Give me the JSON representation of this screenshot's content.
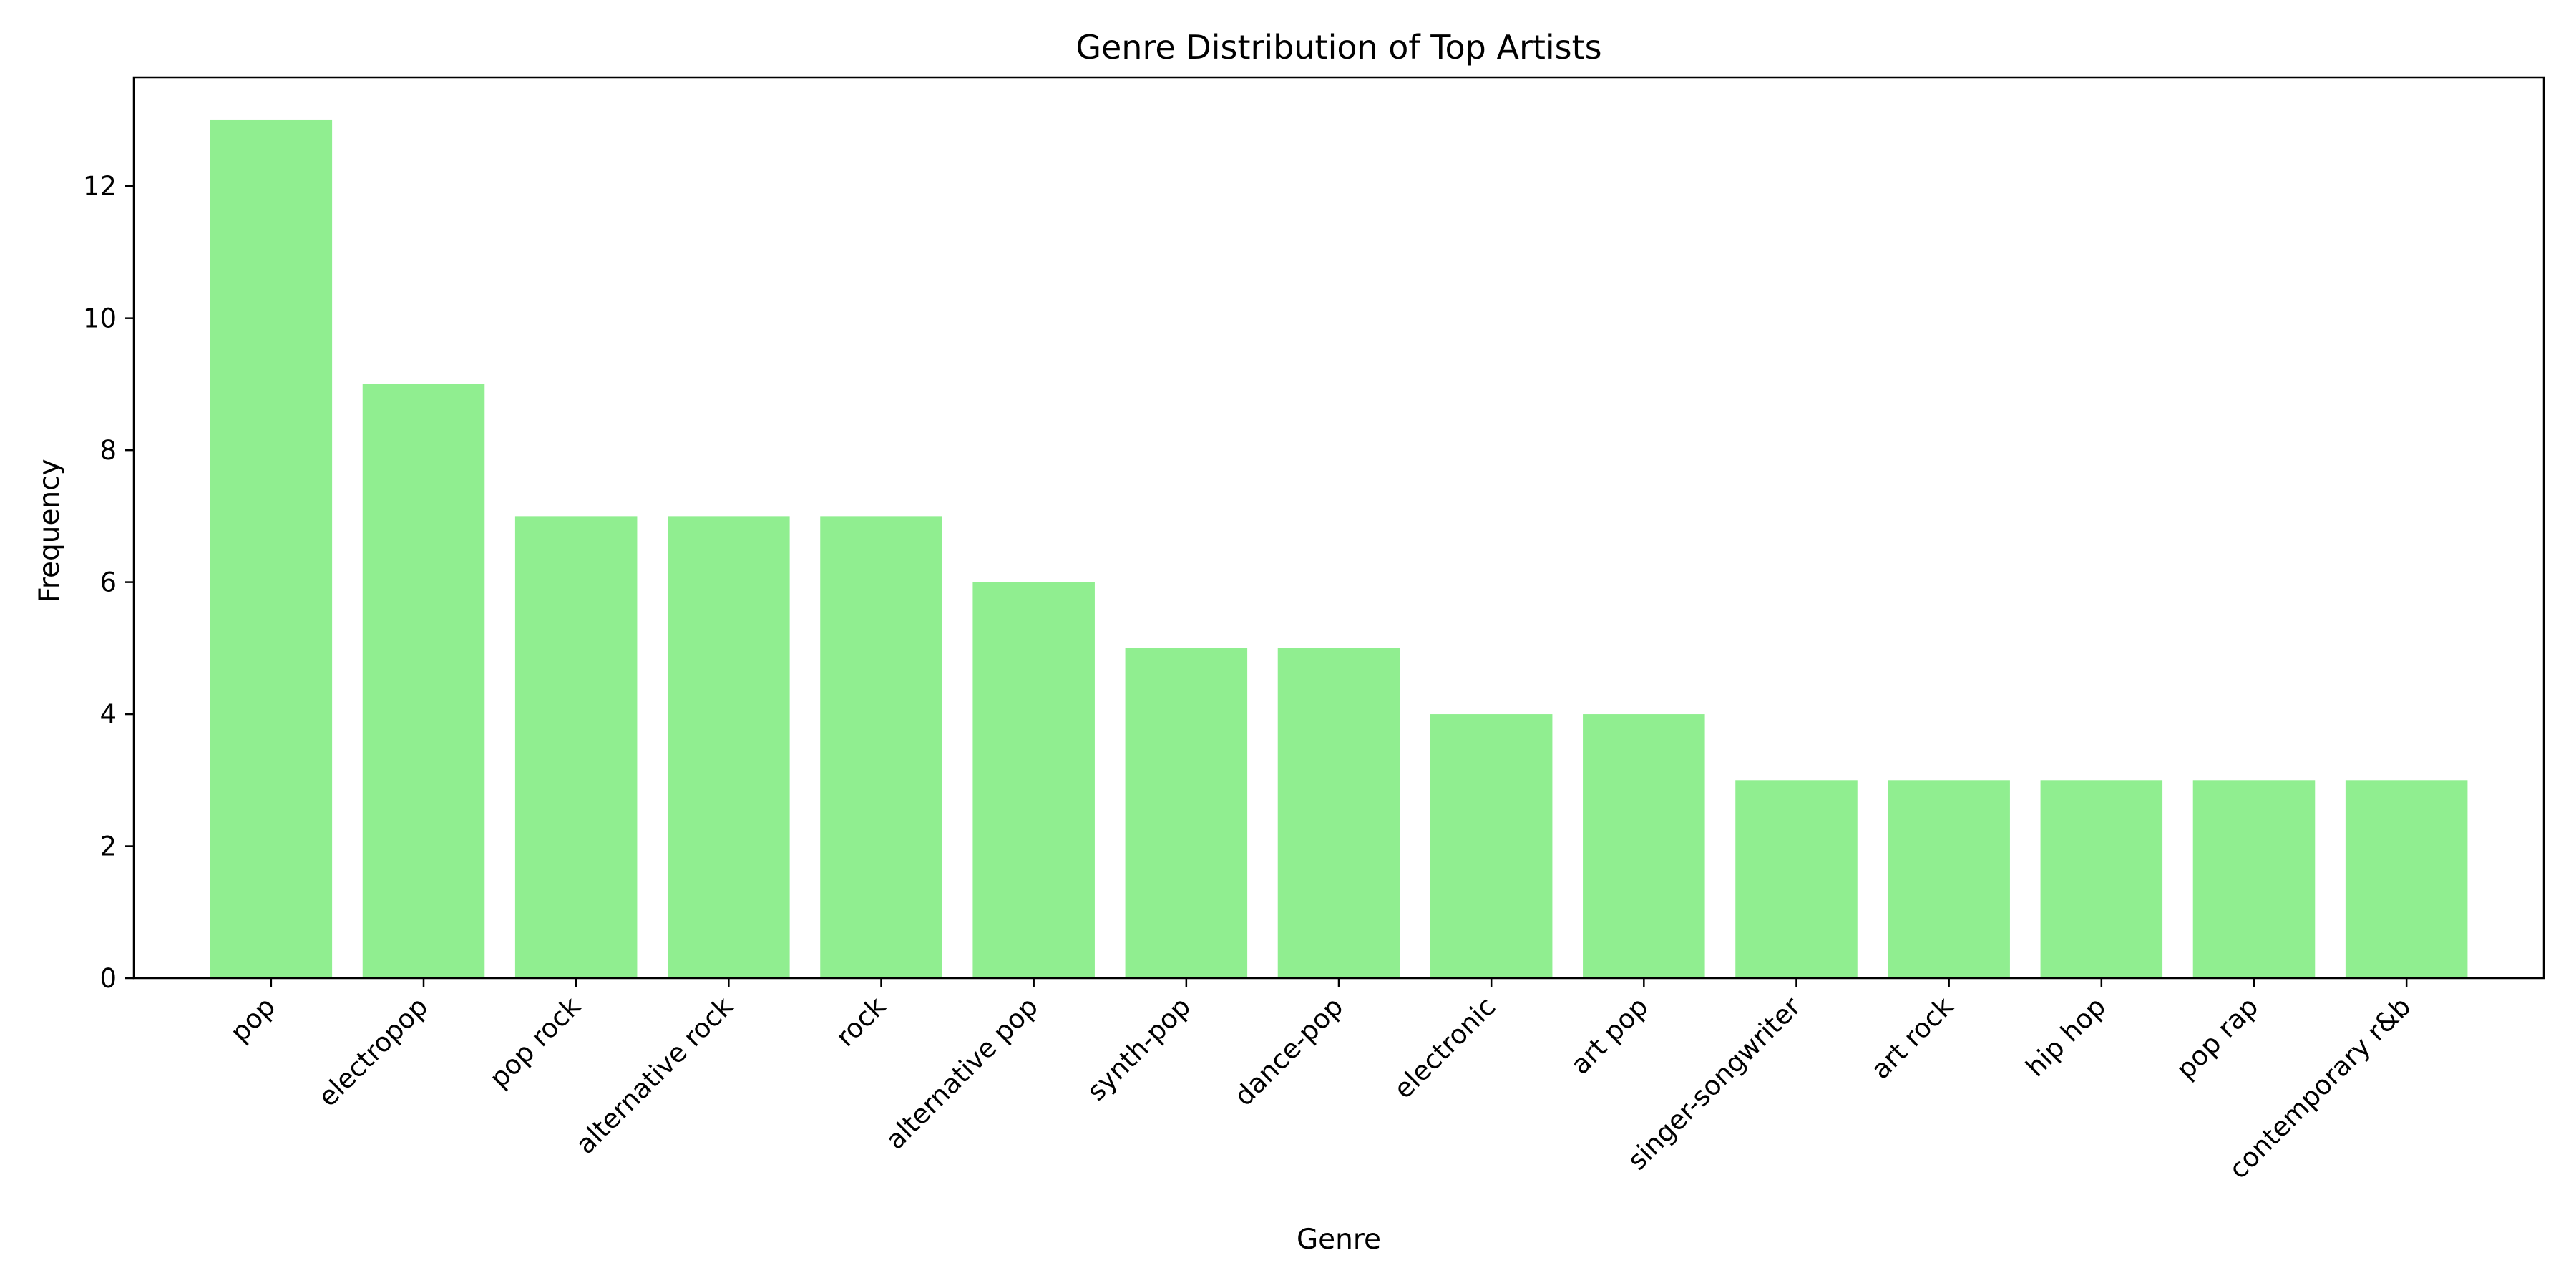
{
  "chart_data": {
    "type": "bar",
    "title": "Genre Distribution of Top Artists",
    "xlabel": "Genre",
    "ylabel": "Frequency",
    "categories": [
      "pop",
      "electropop",
      "pop rock",
      "alternative rock",
      "rock",
      "alternative pop",
      "synth-pop",
      "dance-pop",
      "electronic",
      "art pop",
      "singer-songwriter",
      "art rock",
      "hip hop",
      "pop rap",
      "contemporary r&b"
    ],
    "values": [
      13,
      9,
      7,
      7,
      7,
      6,
      5,
      5,
      4,
      4,
      3,
      3,
      3,
      3,
      3
    ],
    "ylim": [
      0,
      13.65
    ],
    "yticks": [
      0,
      2,
      4,
      6,
      8,
      10,
      12
    ],
    "grid": false,
    "legend": false,
    "colors": {
      "bar": "#90ee90",
      "axis": "#000000",
      "background": "#ffffff"
    }
  }
}
